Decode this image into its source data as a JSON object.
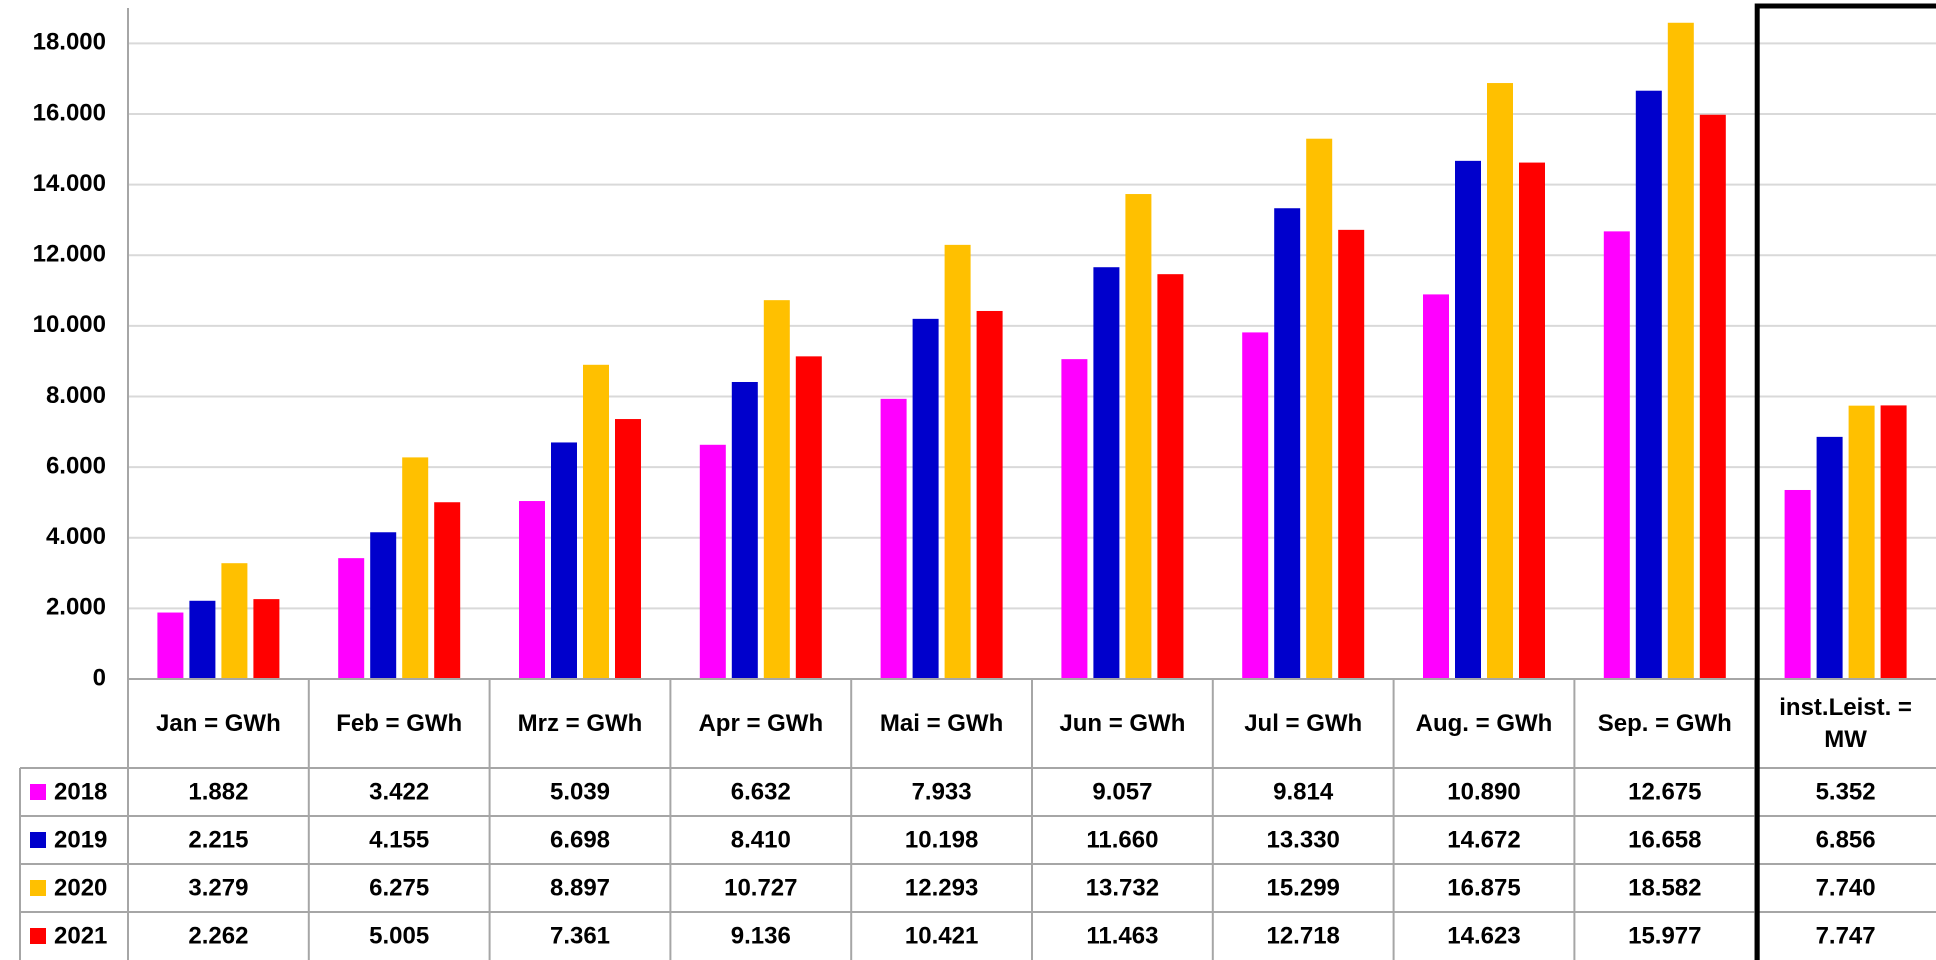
{
  "chart_data": {
    "type": "bar",
    "categories": [
      "Jan = GWh",
      "Feb = GWh",
      "Mrz = GWh",
      "Apr = GWh",
      "Mai = GWh",
      "Jun = GWh",
      "Jul = GWh",
      "Aug. = GWh",
      "Sep. = GWh",
      "inst.Leist. = MW"
    ],
    "series": [
      {
        "name": "2018",
        "color": "#ff00ff",
        "values": [
          1882,
          3422,
          5039,
          6632,
          7933,
          9057,
          9814,
          10890,
          12675,
          5352
        ],
        "value_labels": [
          "1.882",
          "3.422",
          "5.039",
          "6.632",
          "7.933",
          "9.057",
          "9.814",
          "10.890",
          "12.675",
          "5.352"
        ]
      },
      {
        "name": "2019",
        "color": "#0000cc",
        "values": [
          2215,
          4155,
          6698,
          8410,
          10198,
          11660,
          13330,
          14672,
          16658,
          6856
        ],
        "value_labels": [
          "2.215",
          "4.155",
          "6.698",
          "8.410",
          "10.198",
          "11.660",
          "13.330",
          "14.672",
          "16.658",
          "6.856"
        ]
      },
      {
        "name": "2020",
        "color": "#ffc000",
        "values": [
          3279,
          6275,
          8897,
          10727,
          12293,
          13732,
          15299,
          16875,
          18582,
          7740
        ],
        "value_labels": [
          "3.279",
          "6.275",
          "8.897",
          "10.727",
          "12.293",
          "13.732",
          "15.299",
          "16.875",
          "18.582",
          "7.740"
        ]
      },
      {
        "name": "2021",
        "color": "#ff0000",
        "values": [
          2262,
          5005,
          7361,
          9136,
          10421,
          11463,
          12718,
          14623,
          15977,
          7747
        ],
        "value_labels": [
          "2.262",
          "5.005",
          "7.361",
          "9.136",
          "10.421",
          "11.463",
          "12.718",
          "14.623",
          "15.977",
          "7.747"
        ]
      }
    ],
    "ylim": [
      0,
      19000
    ],
    "yticks": [
      0,
      {
        "value": 2000,
        "label": "2.000"
      },
      {
        "value": 4000,
        "label": "4.000"
      },
      {
        "value": 6000,
        "label": "6.000"
      },
      {
        "value": 8000,
        "label": "8.000"
      },
      {
        "value": 10000,
        "label": "10.000"
      },
      {
        "value": 12000,
        "label": "12.000"
      },
      {
        "value": 14000,
        "label": "14.000"
      },
      {
        "value": 16000,
        "label": "16.000"
      },
      {
        "value": 18000,
        "label": "18.000"
      }
    ],
    "grid": true
  }
}
